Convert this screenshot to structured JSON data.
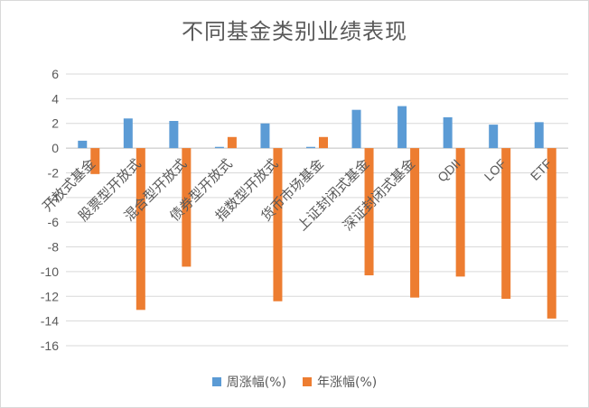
{
  "chart_data": {
    "type": "bar",
    "title": "不同基金类别业绩表现",
    "xlabel": "",
    "ylabel": "",
    "ylim": [
      -16,
      6
    ],
    "yticks": [
      6,
      4,
      2,
      0,
      -2,
      -4,
      -6,
      -8,
      -10,
      -12,
      -14,
      -16
    ],
    "grid": true,
    "legend_position": "bottom",
    "categories": [
      "开放式基金",
      "股票型开放式",
      "混合型开放式",
      "债券型开放式",
      "指数型开放式",
      "货币市场基金",
      "上证封闭式基金",
      "深证封闭式基金",
      "QDII",
      "LOF",
      "ETF"
    ],
    "series": [
      {
        "name": "周涨幅(%)",
        "color": "#5b9bd5",
        "values": [
          0.6,
          2.4,
          2.2,
          0.1,
          2.0,
          0.1,
          3.1,
          3.4,
          2.5,
          1.9,
          2.1
        ]
      },
      {
        "name": "年涨幅(%)",
        "color": "#ed7d31",
        "values": [
          -2.1,
          -13.1,
          -9.6,
          0.9,
          -12.4,
          0.9,
          -10.3,
          -12.1,
          -10.4,
          -12.2,
          -13.8
        ]
      }
    ]
  }
}
